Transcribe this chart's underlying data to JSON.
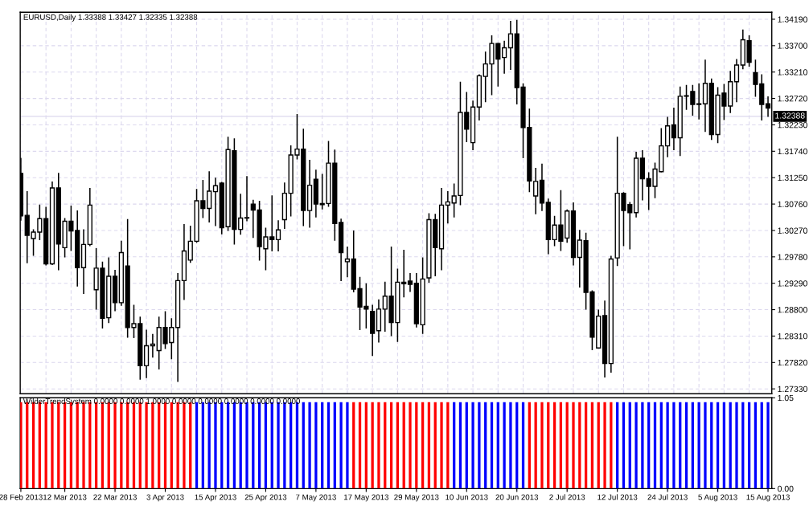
{
  "chart_data": [
    {
      "type": "candlestick",
      "title": "EURUSD,Daily 1.33388 1.33427 1.32335 1.32388",
      "tick_labels": "y",
      "grid": true,
      "ylim": [
        1.2724,
        1.3432
      ],
      "yticks": [
        {
          "value": 1.2733,
          "label": "1.27330"
        },
        {
          "value": 1.2782,
          "label": "1.27820"
        },
        {
          "value": 1.2831,
          "label": "1.28310"
        },
        {
          "value": 1.288,
          "label": "1.28800"
        },
        {
          "value": 1.2929,
          "label": "1.29290"
        },
        {
          "value": 1.2978,
          "label": "1.29780"
        },
        {
          "value": 1.3027,
          "label": "1.30270"
        },
        {
          "value": 1.3076,
          "label": "1.30760"
        },
        {
          "value": 1.3125,
          "label": "1.31250"
        },
        {
          "value": 1.3174,
          "label": "1.31740"
        },
        {
          "value": 1.3223,
          "label": "1.32230"
        },
        {
          "value": 1.3272,
          "label": "1.32720"
        },
        {
          "value": 1.3321,
          "label": "1.33210"
        },
        {
          "value": 1.337,
          "label": "1.33700"
        },
        {
          "value": 1.3419,
          "label": "1.34190"
        }
      ],
      "ref_lines": [
        {
          "axis": "y",
          "value": 1.32388,
          "label": "1.32388",
          "color": "#dcd8ee"
        }
      ],
      "ohlc": [
        [
          1.3133,
          1.3162,
          1.3045,
          1.3054
        ],
        [
          1.3055,
          1.31,
          1.2966,
          1.3018
        ],
        [
          1.3012,
          1.3029,
          1.298,
          1.3024
        ],
        [
          1.3024,
          1.3075,
          1.3009,
          1.3049
        ],
        [
          1.3049,
          1.3071,
          1.2962,
          1.2965
        ],
        [
          1.2965,
          1.3118,
          1.2963,
          1.3106
        ],
        [
          1.3106,
          1.3134,
          1.2953,
          1.3002
        ],
        [
          1.2995,
          1.305,
          1.2977,
          1.3044
        ],
        [
          1.3044,
          1.3073,
          1.2989,
          1.3026
        ],
        [
          1.3027,
          1.3064,
          1.2923,
          1.2958
        ],
        [
          1.2958,
          1.3029,
          1.2909,
          1.3001
        ],
        [
          1.3001,
          1.3106,
          1.2998,
          1.3074
        ],
        [
          1.2917,
          1.2994,
          1.288,
          1.2957
        ],
        [
          1.2957,
          1.2969,
          1.2845,
          1.2864
        ],
        [
          1.2865,
          1.2977,
          1.2855,
          1.2942
        ],
        [
          1.2942,
          1.2954,
          1.2877,
          1.2893
        ],
        [
          1.2893,
          1.3008,
          1.2887,
          1.2986
        ],
        [
          1.2961,
          1.3048,
          1.2828,
          1.2847
        ],
        [
          1.2847,
          1.2889,
          1.2827,
          1.2854
        ],
        [
          1.2854,
          1.2867,
          1.275,
          1.2776
        ],
        [
          1.2776,
          1.2843,
          1.2753,
          1.2813
        ],
        [
          1.2813,
          1.2835,
          1.2791,
          1.2816
        ],
        [
          1.2804,
          1.2867,
          1.2769,
          1.2847
        ],
        [
          1.2847,
          1.2877,
          1.2807,
          1.2817
        ],
        [
          1.2819,
          1.2864,
          1.2788,
          1.2847
        ],
        [
          1.2847,
          1.2948,
          1.2746,
          1.2934
        ],
        [
          1.2934,
          1.3039,
          1.2898,
          1.2989
        ],
        [
          1.2972,
          1.3036,
          1.2967,
          1.3007
        ],
        [
          1.3007,
          1.3104,
          1.3004,
          1.3082
        ],
        [
          1.3082,
          1.3121,
          1.305,
          1.3068
        ],
        [
          1.3068,
          1.3137,
          1.3042,
          1.31
        ],
        [
          1.3099,
          1.3125,
          1.3035,
          1.311
        ],
        [
          1.3115,
          1.3117,
          1.302,
          1.3032
        ],
        [
          1.3034,
          1.3201,
          1.3026,
          1.3177
        ],
        [
          1.3175,
          1.3198,
          1.3001,
          1.3029
        ],
        [
          1.3029,
          1.3095,
          1.3019,
          1.305
        ],
        [
          1.305,
          1.3128,
          1.3044,
          1.3051
        ],
        [
          1.3076,
          1.3084,
          1.3013,
          1.3065
        ],
        [
          1.3065,
          1.3082,
          1.2971,
          1.2997
        ],
        [
          1.2993,
          1.3032,
          1.2953,
          1.3015
        ],
        [
          1.3015,
          1.3092,
          1.2988,
          1.301
        ],
        [
          1.301,
          1.3046,
          1.2988,
          1.3028
        ],
        [
          1.3047,
          1.3116,
          1.303,
          1.3096
        ],
        [
          1.3096,
          1.3185,
          1.3053,
          1.3167
        ],
        [
          1.3167,
          1.3243,
          1.3159,
          1.3178
        ],
        [
          1.3178,
          1.3216,
          1.3035,
          1.3064
        ],
        [
          1.3064,
          1.3158,
          1.3032,
          1.3111
        ],
        [
          1.3122,
          1.314,
          1.3051,
          1.3076
        ],
        [
          1.3077,
          1.3132,
          1.3066,
          1.3075
        ],
        [
          1.3077,
          1.3193,
          1.3071,
          1.3152
        ],
        [
          1.3152,
          1.3177,
          1.3008,
          1.304
        ],
        [
          1.3042,
          1.3049,
          1.2933,
          1.2986
        ],
        [
          1.2969,
          1.2997,
          1.294,
          1.2974
        ],
        [
          1.2974,
          1.3027,
          1.2912,
          1.2918
        ],
        [
          1.2919,
          1.2941,
          1.2842,
          1.2885
        ],
        [
          1.2886,
          1.2929,
          1.2845,
          1.2881
        ],
        [
          1.2877,
          1.2889,
          1.2794,
          1.2836
        ],
        [
          1.2841,
          1.2899,
          1.2819,
          1.2881
        ],
        [
          1.2881,
          1.2932,
          1.2839,
          1.2905
        ],
        [
          1.2905,
          1.2997,
          1.2831,
          1.2856
        ],
        [
          1.2856,
          1.2956,
          1.282,
          1.2931
        ],
        [
          1.2931,
          1.2991,
          1.2903,
          1.2928
        ],
        [
          1.2933,
          1.2948,
          1.2913,
          1.2927
        ],
        [
          1.2929,
          1.2948,
          1.2847,
          1.2854
        ],
        [
          1.2852,
          1.2977,
          1.2835,
          1.2937
        ],
        [
          1.2939,
          1.3059,
          1.293,
          1.3047
        ],
        [
          1.3047,
          1.3058,
          1.2942,
          1.2995
        ],
        [
          1.2993,
          1.3106,
          1.2953,
          1.3074
        ],
        [
          1.3074,
          1.31,
          1.304,
          1.308
        ],
        [
          1.3078,
          1.3114,
          1.3051,
          1.3091
        ],
        [
          1.3092,
          1.3303,
          1.3074,
          1.3246
        ],
        [
          1.3246,
          1.3284,
          1.3191,
          1.3215
        ],
        [
          1.319,
          1.3268,
          1.3176,
          1.3256
        ],
        [
          1.3256,
          1.3317,
          1.3231,
          1.3314
        ],
        [
          1.3313,
          1.3359,
          1.3265,
          1.3336
        ],
        [
          1.3336,
          1.3389,
          1.3278,
          1.3374
        ],
        [
          1.3374,
          1.3375,
          1.3294,
          1.3345
        ],
        [
          1.3348,
          1.3379,
          1.3318,
          1.3366
        ],
        [
          1.3366,
          1.3416,
          1.3325,
          1.3392
        ],
        [
          1.3392,
          1.3418,
          1.3261,
          1.3292
        ],
        [
          1.3293,
          1.33,
          1.3161,
          1.3218
        ],
        [
          1.3218,
          1.3253,
          1.3098,
          1.3119
        ],
        [
          1.3091,
          1.3143,
          1.3057,
          1.3118
        ],
        [
          1.312,
          1.3151,
          1.3063,
          1.3078
        ],
        [
          1.3079,
          1.3086,
          1.2983,
          1.301
        ],
        [
          1.301,
          1.3054,
          1.2998,
          1.3037
        ],
        [
          1.3037,
          1.3102,
          1.2989,
          1.3007
        ],
        [
          1.3013,
          1.3066,
          1.3004,
          1.3063
        ],
        [
          1.3063,
          1.3079,
          1.2962,
          1.2977
        ],
        [
          1.2977,
          1.3028,
          1.2921,
          1.3009
        ],
        [
          1.3008,
          1.3023,
          1.288,
          1.2912
        ],
        [
          1.2913,
          1.2916,
          1.2805,
          1.2829
        ],
        [
          1.2809,
          1.288,
          1.2808,
          1.2868
        ],
        [
          1.2869,
          1.2897,
          1.2754,
          1.278
        ],
        [
          1.278,
          1.298,
          1.2763,
          1.2974
        ],
        [
          1.2976,
          1.3201,
          1.2961,
          1.3096
        ],
        [
          1.3096,
          1.3098,
          1.2998,
          1.3064
        ],
        [
          1.3075,
          1.308,
          1.2992,
          1.306
        ],
        [
          1.306,
          1.3173,
          1.3051,
          1.3161
        ],
        [
          1.3161,
          1.3176,
          1.3083,
          1.3123
        ],
        [
          1.3123,
          1.3135,
          1.3065,
          1.3109
        ],
        [
          1.3109,
          1.3153,
          1.3087,
          1.3141
        ],
        [
          1.3136,
          1.3217,
          1.3135,
          1.3184
        ],
        [
          1.3184,
          1.3238,
          1.3163,
          1.3221
        ],
        [
          1.3223,
          1.3255,
          1.3176,
          1.3199
        ],
        [
          1.3199,
          1.3294,
          1.3165,
          1.3276
        ],
        [
          1.3276,
          1.3297,
          1.3251,
          1.3277
        ],
        [
          1.3285,
          1.3297,
          1.324,
          1.3261
        ],
        [
          1.3262,
          1.33,
          1.3233,
          1.3261
        ],
        [
          1.3262,
          1.3344,
          1.321,
          1.33
        ],
        [
          1.33,
          1.3309,
          1.3195,
          1.3205
        ],
        [
          1.3205,
          1.3293,
          1.3189,
          1.3278
        ],
        [
          1.3282,
          1.3299,
          1.3232,
          1.3258
        ],
        [
          1.3258,
          1.3323,
          1.3245,
          1.3303
        ],
        [
          1.3303,
          1.3345,
          1.3265,
          1.3334
        ],
        [
          1.3334,
          1.34,
          1.3326,
          1.3381
        ],
        [
          1.3379,
          1.3389,
          1.3331,
          1.3339
        ],
        [
          1.332,
          1.3344,
          1.3275,
          1.3298
        ],
        [
          1.3299,
          1.3317,
          1.3231,
          1.3261
        ],
        [
          1.3262,
          1.3276,
          1.3238,
          1.3254
        ]
      ]
    },
    {
      "type": "bar",
      "title": "WilderTrendSystem 0.0000 0.0000 1.0000 0.0000 0.0000 0.0000 0.0000 0.0000",
      "grid": false,
      "categories": [
        "28 Feb 2013",
        null,
        null,
        null,
        null,
        null,
        null,
        "12 Mar 2013",
        null,
        null,
        null,
        null,
        null,
        null,
        null,
        "22 Mar 2013",
        null,
        null,
        null,
        null,
        null,
        null,
        null,
        "3 Apr 2013",
        null,
        null,
        null,
        null,
        null,
        null,
        null,
        "15 Apr 2013",
        null,
        null,
        null,
        null,
        null,
        null,
        null,
        "25 Apr 2013",
        null,
        null,
        null,
        null,
        null,
        null,
        null,
        "7 May 2013",
        null,
        null,
        null,
        null,
        null,
        null,
        null,
        "17 May 2013",
        null,
        null,
        null,
        null,
        null,
        null,
        null,
        "29 May 2013",
        null,
        null,
        null,
        null,
        null,
        null,
        null,
        "10 Jun 2013",
        null,
        null,
        null,
        null,
        null,
        null,
        null,
        "20 Jun 2013",
        null,
        null,
        null,
        null,
        null,
        null,
        null,
        "2 Jul 2013",
        null,
        null,
        null,
        null,
        null,
        null,
        null,
        "12 Jul 2013",
        null,
        null,
        null,
        null,
        null,
        null,
        null,
        "24 Jul 2013",
        null,
        null,
        null,
        null,
        null,
        null,
        null,
        "5 Aug 2013",
        null,
        null,
        null,
        null,
        null,
        null,
        null,
        "15 Aug 2013"
      ],
      "ylim": [
        0,
        1.05
      ],
      "yticks": [
        {
          "value": 0,
          "label": "0.00"
        },
        1.05
      ],
      "values": [
        1,
        1,
        1,
        1,
        1,
        1,
        1,
        1,
        1,
        1,
        1,
        1,
        1,
        1,
        1,
        1,
        1,
        1,
        1,
        1,
        1,
        1,
        1,
        1,
        1,
        1,
        1,
        1,
        1,
        1,
        1,
        1,
        1,
        1,
        1,
        1,
        1,
        1,
        1,
        1,
        1,
        1,
        1,
        1,
        1,
        1,
        1,
        1,
        1,
        1,
        1,
        1,
        1,
        1,
        1,
        1,
        1,
        1,
        1,
        1,
        1,
        1,
        1,
        1,
        1,
        1,
        1,
        1,
        1,
        1,
        1,
        1,
        1,
        1,
        1,
        1,
        1,
        1,
        1,
        1,
        1,
        1,
        1,
        1,
        1,
        1,
        1,
        1,
        1,
        1,
        1,
        1,
        1,
        1,
        1,
        1,
        1,
        1,
        1,
        1,
        1,
        1,
        1,
        1,
        1,
        1,
        1,
        1,
        1,
        1,
        1,
        1,
        1,
        1,
        1,
        1,
        1,
        1,
        1,
        1
      ],
      "colors": [
        "#ff0000",
        "#ff0000",
        "#ff0000",
        "#ff0000",
        "#ff0000",
        "#ff0000",
        "#ff0000",
        "#ff0000",
        "#ff0000",
        "#ff0000",
        "#ff0000",
        "#ff0000",
        "#ff0000",
        "#ff0000",
        "#ff0000",
        "#ff0000",
        "#ff0000",
        "#ff0000",
        "#ff0000",
        "#ff0000",
        "#ff0000",
        "#ff0000",
        "#ff0000",
        "#ff0000",
        "#ff0000",
        "#ff0000",
        "#ff0000",
        "#ff0000",
        "#0000ff",
        "#0000ff",
        "#0000ff",
        "#0000ff",
        "#0000ff",
        "#0000ff",
        "#0000ff",
        "#0000ff",
        "#0000ff",
        "#0000ff",
        "#0000ff",
        "#0000ff",
        "#0000ff",
        "#0000ff",
        "#0000ff",
        "#0000ff",
        "#0000ff",
        "#0000ff",
        "#0000ff",
        "#0000ff",
        "#0000ff",
        "#0000ff",
        "#0000ff",
        "#0000ff",
        "#0000ff",
        "#ff0000",
        "#ff0000",
        "#ff0000",
        "#ff0000",
        "#ff0000",
        "#ff0000",
        "#ff0000",
        "#ff0000",
        "#ff0000",
        "#ff0000",
        "#ff0000",
        "#ff0000",
        "#ff0000",
        "#ff0000",
        "#ff0000",
        "#ff0000",
        "#0000ff",
        "#0000ff",
        "#0000ff",
        "#0000ff",
        "#0000ff",
        "#0000ff",
        "#0000ff",
        "#0000ff",
        "#0000ff",
        "#0000ff",
        "#0000ff",
        "#0000ff",
        "#ff0000",
        "#ff0000",
        "#ff0000",
        "#ff0000",
        "#ff0000",
        "#ff0000",
        "#ff0000",
        "#ff0000",
        "#ff0000",
        "#ff0000",
        "#ff0000",
        "#ff0000",
        "#ff0000",
        "#ff0000",
        "#0000ff",
        "#0000ff",
        "#0000ff",
        "#0000ff",
        "#0000ff",
        "#0000ff",
        "#0000ff",
        "#0000ff",
        "#0000ff",
        "#0000ff",
        "#0000ff",
        "#0000ff",
        "#0000ff",
        "#0000ff",
        "#0000ff",
        "#0000ff",
        "#0000ff",
        "#0000ff",
        "#0000ff",
        "#0000ff",
        "#0000ff",
        "#0000ff",
        "#0000ff",
        "#0000ff",
        "#0000ff"
      ]
    }
  ]
}
